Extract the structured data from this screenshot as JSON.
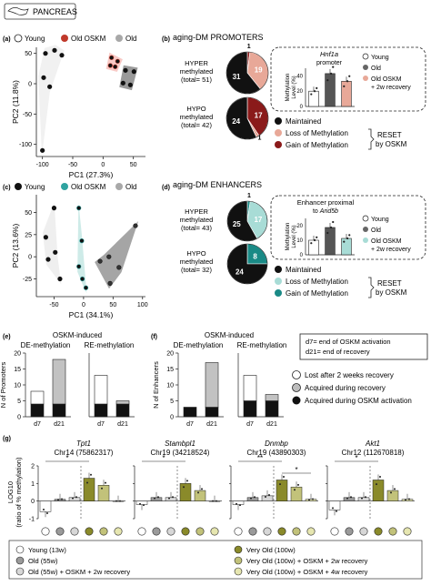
{
  "header": {
    "label": "PANCREAS",
    "icon": "pancreas-icon"
  },
  "panel_labels": {
    "a": "(a)",
    "b": "(b)",
    "c": "(c)",
    "d": "(d)",
    "e": "(e)",
    "f": "(f)",
    "g": "(g)"
  },
  "colors": {
    "young": "#ffffff",
    "old_oskm": "#c0392b",
    "old": "#a8a8a8",
    "old_oskm_teal": "#2fa3a0",
    "maintained": "#111111",
    "loss_prom": "#e8a898",
    "gain_prom": "#8a1a1a",
    "loss_enh": "#a8dcd6",
    "gain_enh": "#1a8a86",
    "olive": "#8a8a2a",
    "olive_light": "#c8c884",
    "olive_pale": "#e6e6a8"
  },
  "panel_a": {
    "legend": [
      "Young",
      "Old OSKM",
      "Old"
    ],
    "xlabel": "PC1 (27.3%)",
    "ylabel": "PC2 (11.8%)",
    "xticks": [
      "-100",
      "-50",
      "0",
      "50"
    ],
    "yticks": [
      "50",
      "0",
      "-50",
      "-100"
    ]
  },
  "panel_b": {
    "title": "aging-DM PROMOTERS",
    "hyper_label": [
      "HYPER",
      "methylated",
      "(total= 51)"
    ],
    "hypo_label": [
      "HYPO",
      "methylated",
      "(total= 42)"
    ],
    "inset_title": "Hnf1a",
    "inset_sub": "promoter",
    "inset_ylabel": [
      "Methylation",
      "Level (%)"
    ],
    "inset_yticks": [
      "40",
      "20",
      "0"
    ],
    "inset_legend": [
      "Young",
      "Old",
      "Old OSKM",
      "+ 2w recovery"
    ],
    "legend": [
      "Maintained",
      "Loss of Methylation",
      "Gain of Methylation"
    ],
    "reset": [
      "RESET",
      "by OSKM"
    ]
  },
  "panel_c": {
    "legend": [
      "Young",
      "Old OSKM",
      "Old"
    ],
    "xlabel": "PC1 (34.1%)",
    "ylabel": "PC2 (13.6%)",
    "xticks": [
      "-50",
      "0",
      "50",
      "100"
    ],
    "yticks": [
      "50",
      "25",
      "0",
      "-25"
    ]
  },
  "panel_d": {
    "title": "aging-DM ENHANCERS",
    "hyper_label": [
      "HYPER",
      "methylated",
      "(total= 43)"
    ],
    "hypo_label": [
      "HYPO",
      "methylated",
      "(total= 32)"
    ],
    "inset_title": "Enhancer proximal",
    "inset_sub_a": "to ",
    "inset_sub_b": "Arid5b",
    "inset_ylabel": [
      "Methylation",
      "Level (%)"
    ],
    "inset_yticks": [
      "20",
      "10",
      "0"
    ],
    "inset_legend": [
      "Young",
      "Old",
      "Old OSKM",
      "+ 2w recovery"
    ],
    "legend": [
      "Maintained",
      "Loss of Methylation",
      "Gain of Methylation"
    ],
    "reset": [
      "RESET",
      "by OSKM"
    ]
  },
  "panel_e": {
    "title": "OSKM-induced",
    "sub1": "DE-methylation",
    "sub2": "RE-methylation",
    "ylabel": "N of Promoters",
    "yticks": [
      "20",
      "15",
      "10",
      "5",
      "0"
    ],
    "xticks": [
      "d7",
      "d21"
    ]
  },
  "panel_f": {
    "title": "OSKM-induced",
    "sub1": "DE-methylation",
    "sub2": "RE-methylation",
    "ylabel": "N of Enhancers",
    "yticks": [
      "20",
      "15",
      "10",
      "5",
      "0"
    ],
    "xticks": [
      "d7",
      "d21"
    ]
  },
  "notes": {
    "d7": "d7= end of OSKM activation",
    "d21": "d21= end of recovery"
  },
  "ef_legend": [
    "Lost after 2 weeks recovery",
    "Acquired during recovery",
    "Acquired during OSKM activation"
  ],
  "panel_g": {
    "ylabel": [
      "LOG10",
      "(ratio of % methylation)"
    ],
    "yticks": [
      "2",
      "1",
      "0",
      "-1"
    ],
    "genes": [
      {
        "name": "Tpt1",
        "loc": "Chr14 (75862317)",
        "sig": [
          "*"
        ]
      },
      {
        "name": "Stambpl1",
        "loc": "Chr19 (34218524)",
        "sig": [
          "*"
        ]
      },
      {
        "name": "Dnmbp",
        "loc": "Chr19 (43890303)",
        "sig": [
          "**",
          "*"
        ]
      },
      {
        "name": "Akt1",
        "loc": "Chr12 (112670818)",
        "sig": [
          "*"
        ]
      }
    ],
    "legend": [
      "Young (13w)",
      "Very Old (100w)",
      "Old (55w)",
      "Very Old (100w) + OSKM + 2w recovery",
      "Old (55w) + OSKM + 2w recovery",
      "Very Old (100w) + OSKM + 4w recovery"
    ]
  },
  "chart_data": [
    {
      "type": "scatter",
      "id": "a",
      "xlabel": "PC1 (27.3%)",
      "ylabel": "PC2 (11.8%)",
      "xlim": [
        -110,
        70
      ],
      "ylim": [
        -120,
        60
      ],
      "series": [
        {
          "name": "Young",
          "points": [
            [
              -95,
              50
            ],
            [
              -80,
              55
            ],
            [
              -68,
              47
            ],
            [
              -98,
              10
            ],
            [
              -88,
              -5
            ],
            [
              -100,
              -110
            ]
          ]
        },
        {
          "name": "Old OSKM",
          "points": [
            [
              14,
              43
            ],
            [
              24,
              37
            ],
            [
              12,
              30
            ],
            [
              20,
              28
            ]
          ]
        },
        {
          "name": "Old",
          "points": [
            [
              37,
              22
            ],
            [
              51,
              20
            ],
            [
              33,
              1
            ],
            [
              45,
              -2
            ]
          ]
        }
      ]
    },
    {
      "type": "pie",
      "id": "b-hyper",
      "labels": [
        "Maintained",
        "Loss of Methylation",
        "Gain of Methylation"
      ],
      "values": [
        31,
        19,
        1
      ]
    },
    {
      "type": "pie",
      "id": "b-hypo",
      "labels": [
        "Maintained",
        "Loss of Methylation",
        "Gain of Methylation"
      ],
      "values": [
        24,
        1,
        17
      ]
    },
    {
      "type": "bar",
      "id": "b-inset",
      "categories": [
        "Young",
        "Old",
        "Old OSKM + 2w recovery"
      ],
      "values": [
        20,
        43,
        33
      ],
      "ylim": [
        0,
        50
      ]
    },
    {
      "type": "scatter",
      "id": "c",
      "xlabel": "PC1 (34.1%)",
      "ylabel": "PC2 (13.6%)",
      "xlim": [
        -80,
        105
      ],
      "ylim": [
        -45,
        70
      ],
      "series": [
        {
          "name": "Young",
          "points": [
            [
              -64,
              22
            ],
            [
              -50,
              55
            ],
            [
              -60,
              -3
            ],
            [
              -48,
              5
            ],
            [
              -40,
              -25
            ]
          ]
        },
        {
          "name": "Old OSKM",
          "points": [
            [
              -8,
              55
            ],
            [
              -3,
              18
            ],
            [
              -8,
              -11
            ],
            [
              -2,
              -25
            ],
            [
              4,
              -35
            ]
          ]
        },
        {
          "name": "Old",
          "points": [
            [
              88,
              35
            ],
            [
              60,
              -12
            ],
            [
              43,
              0
            ],
            [
              28,
              -5
            ],
            [
              45,
              -30
            ]
          ]
        }
      ]
    },
    {
      "type": "pie",
      "id": "d-hyper",
      "labels": [
        "Maintained",
        "Loss of Methylation",
        "Gain of Methylation"
      ],
      "values": [
        25,
        17,
        1
      ]
    },
    {
      "type": "pie",
      "id": "d-hypo",
      "labels": [
        "Maintained",
        "Loss of Methylation",
        "Gain of Methylation"
      ],
      "values": [
        24,
        0,
        8
      ]
    },
    {
      "type": "bar",
      "id": "d-inset",
      "categories": [
        "Young",
        "Old",
        "Old OSKM + 2w recovery"
      ],
      "values": [
        8,
        15,
        9
      ],
      "ylim": [
        0,
        20
      ]
    },
    {
      "type": "bar",
      "id": "e",
      "stacked": true,
      "groups": [
        {
          "name": "DE-methylation",
          "categories": [
            "d7",
            "d21"
          ],
          "series": [
            {
              "name": "Acquired during OSKM activation",
              "values": [
                4,
                4
              ]
            },
            {
              "name": "Acquired during recovery",
              "values": [
                0,
                14
              ]
            },
            {
              "name": "Lost after 2 weeks recovery",
              "values": [
                4,
                0
              ]
            }
          ]
        },
        {
          "name": "RE-methylation",
          "categories": [
            "d7",
            "d21"
          ],
          "series": [
            {
              "name": "Acquired during OSKM activation",
              "values": [
                4,
                4
              ]
            },
            {
              "name": "Acquired during recovery",
              "values": [
                0,
                1
              ]
            },
            {
              "name": "Lost after 2 weeks recovery",
              "values": [
                9,
                0
              ]
            }
          ]
        }
      ],
      "ylim": [
        0,
        20
      ]
    },
    {
      "type": "bar",
      "id": "f",
      "stacked": true,
      "groups": [
        {
          "name": "DE-methylation",
          "categories": [
            "d7",
            "d21"
          ],
          "series": [
            {
              "name": "Acquired during OSKM activation",
              "values": [
                3,
                3
              ]
            },
            {
              "name": "Acquired during recovery",
              "values": [
                0,
                14
              ]
            },
            {
              "name": "Lost after 2 weeks recovery",
              "values": [
                0,
                0
              ]
            }
          ]
        },
        {
          "name": "RE-methylation",
          "categories": [
            "d7",
            "d21"
          ],
          "series": [
            {
              "name": "Acquired during OSKM activation",
              "values": [
                5,
                5
              ]
            },
            {
              "name": "Acquired during recovery",
              "values": [
                0,
                2
              ]
            },
            {
              "name": "Lost after 2 weeks recovery",
              "values": [
                8,
                0
              ]
            }
          ]
        }
      ],
      "ylim": [
        0,
        20
      ]
    },
    {
      "type": "bar",
      "id": "g",
      "categories": [
        "Young (13w)",
        "Old (55w)",
        "Old (55w) + OSKM + 2w recovery",
        "Very Old (100w)",
        "Very Old (100w) + OSKM + 2w recovery",
        "Very Old (100w) + OSKM + 4w recovery"
      ],
      "series": [
        {
          "name": "Tpt1",
          "values": [
            -0.6,
            0.1,
            0.2,
            1.3,
            0.9,
            0.0
          ]
        },
        {
          "name": "Stambpl1",
          "values": [
            -0.2,
            0.2,
            0.2,
            1.0,
            0.6,
            0.0
          ]
        },
        {
          "name": "Dnmbp",
          "values": [
            -0.2,
            0.2,
            0.3,
            1.2,
            0.8,
            0.1
          ]
        },
        {
          "name": "Akt1",
          "values": [
            -0.5,
            0.2,
            0.2,
            1.2,
            0.6,
            0.1
          ]
        }
      ],
      "ylim": [
        -1,
        2
      ]
    }
  ]
}
